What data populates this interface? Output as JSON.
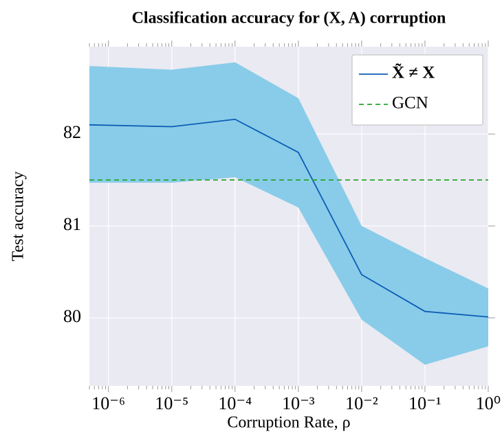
{
  "chart_data": {
    "type": "line",
    "title": "Classification accuracy for (X, A) corruption",
    "xlabel": "Corruption Rate, ρ",
    "ylabel": "Test accuracy",
    "xscale": "log",
    "x": [
      5e-07,
      1e-05,
      0.0001,
      0.001,
      0.01,
      0.1,
      1
    ],
    "series": [
      {
        "name": "X̃ ≠ X",
        "color": "#0b5cb5",
        "band_color": "#89cce9",
        "values": [
          82.1,
          82.08,
          82.16,
          81.8,
          80.47,
          80.07,
          80.01
        ],
        "upper": [
          82.74,
          82.7,
          82.78,
          82.39,
          81.0,
          80.65,
          80.32
        ],
        "lower": [
          81.47,
          81.47,
          81.53,
          81.2,
          79.98,
          79.49,
          79.69
        ]
      },
      {
        "name": "GCN",
        "color": "#27a52a",
        "dashed": true,
        "values": [
          81.5,
          81.5,
          81.5,
          81.5,
          81.5,
          81.5,
          81.5
        ]
      }
    ],
    "xlim": [
      5e-07,
      1
    ],
    "ylim": [
      79.26,
      82.95
    ],
    "xticks": [
      {
        "value": 1e-06,
        "label": "10⁻⁶"
      },
      {
        "value": 1e-05,
        "label": "10⁻⁵"
      },
      {
        "value": 0.0001,
        "label": "10⁻⁴"
      },
      {
        "value": 0.001,
        "label": "10⁻³"
      },
      {
        "value": 0.01,
        "label": "10⁻²"
      },
      {
        "value": 0.1,
        "label": "10⁻¹"
      },
      {
        "value": 1,
        "label": "10⁰"
      }
    ],
    "yticks": [
      80,
      81,
      82
    ],
    "grid": true,
    "legend": "upper right"
  }
}
